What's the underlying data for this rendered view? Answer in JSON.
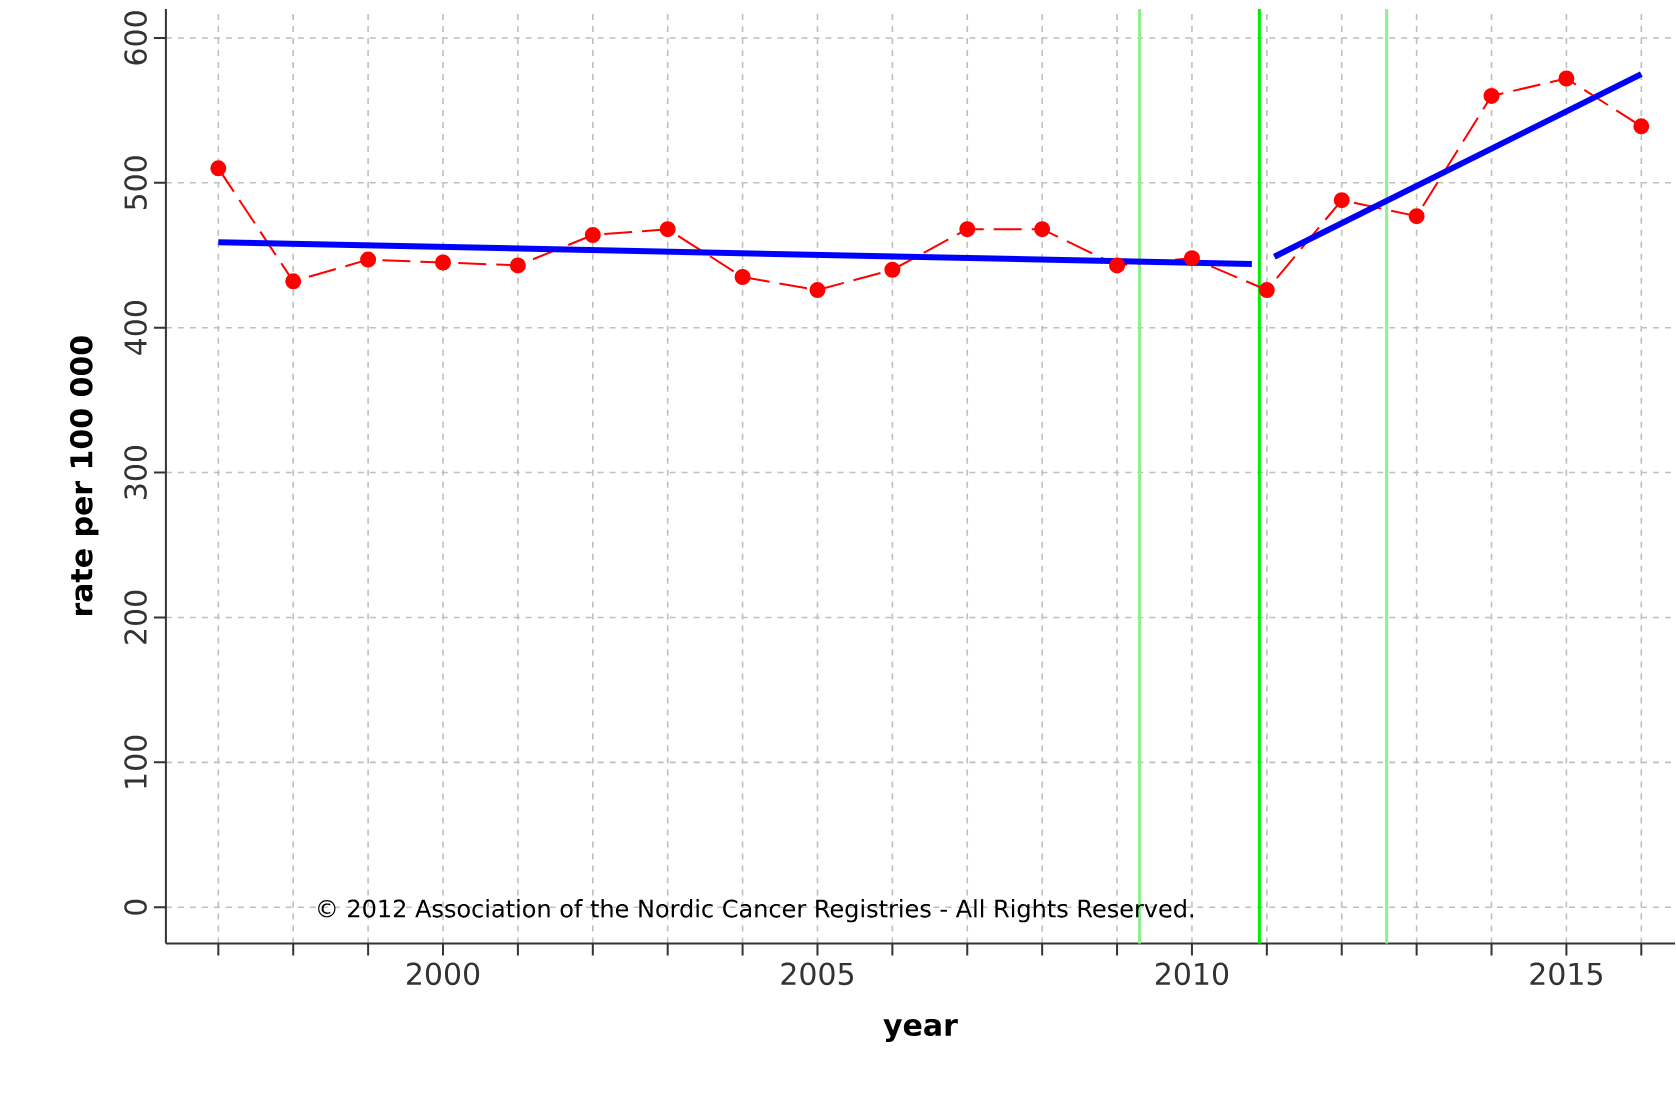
{
  "chart_data": {
    "type": "line",
    "xlabel": "year",
    "ylabel": "rate per 100 000",
    "x": [
      1997,
      1998,
      1999,
      2000,
      2001,
      2002,
      2003,
      2004,
      2005,
      2006,
      2007,
      2008,
      2009,
      2010,
      2011,
      2012,
      2013,
      2014,
      2015,
      2016
    ],
    "series": [
      {
        "color": "#ff0000",
        "marker": "circle",
        "line_style": "dashed",
        "values": [
          510,
          432,
          447,
          445,
          443,
          464,
          468,
          435,
          426,
          440,
          468,
          468,
          443,
          448,
          426,
          488,
          477,
          560,
          572,
          539
        ]
      },
      {
        "color": "#0000ff",
        "marker": "none",
        "line_style": "solid",
        "x": [
          1997,
          2010.8
        ],
        "values": [
          459,
          444
        ]
      },
      {
        "color": "#0000ff",
        "marker": "none",
        "line_style": "solid",
        "x": [
          2011.1,
          2016
        ],
        "values": [
          449,
          575
        ]
      }
    ],
    "xlim": [
      1996.3,
      2016.45
    ],
    "ylim": [
      -25,
      620
    ],
    "xticks": [
      {
        "value": 1997,
        "label": null
      },
      {
        "value": 1998,
        "label": null
      },
      {
        "value": 1999,
        "label": null
      },
      2000,
      {
        "value": 2001,
        "label": null
      },
      {
        "value": 2002,
        "label": null
      },
      {
        "value": 2003,
        "label": null
      },
      {
        "value": 2004,
        "label": null
      },
      2005,
      {
        "value": 2006,
        "label": null
      },
      {
        "value": 2007,
        "label": null
      },
      {
        "value": 2008,
        "label": null
      },
      {
        "value": 2009,
        "label": null
      },
      2010,
      {
        "value": 2011,
        "label": null
      },
      {
        "value": 2012,
        "label": null
      },
      {
        "value": 2013,
        "label": null
      },
      {
        "value": 2014,
        "label": null
      },
      2015,
      {
        "value": 2016,
        "label": null
      }
    ],
    "yticks": [
      0,
      100,
      200,
      300,
      400,
      500,
      600
    ],
    "grid": true,
    "ref_lines": [
      {
        "axis": "x",
        "value": 2009.3,
        "color": "#90ee90"
      },
      {
        "axis": "x",
        "value": 2010.9,
        "color": "#00ee00"
      },
      {
        "axis": "x",
        "value": 2012.6,
        "color": "#90ee90"
      }
    ],
    "annotations": [
      "© 2012 Association of the Nordic Cancer Registries - All Rights Reserved."
    ]
  }
}
